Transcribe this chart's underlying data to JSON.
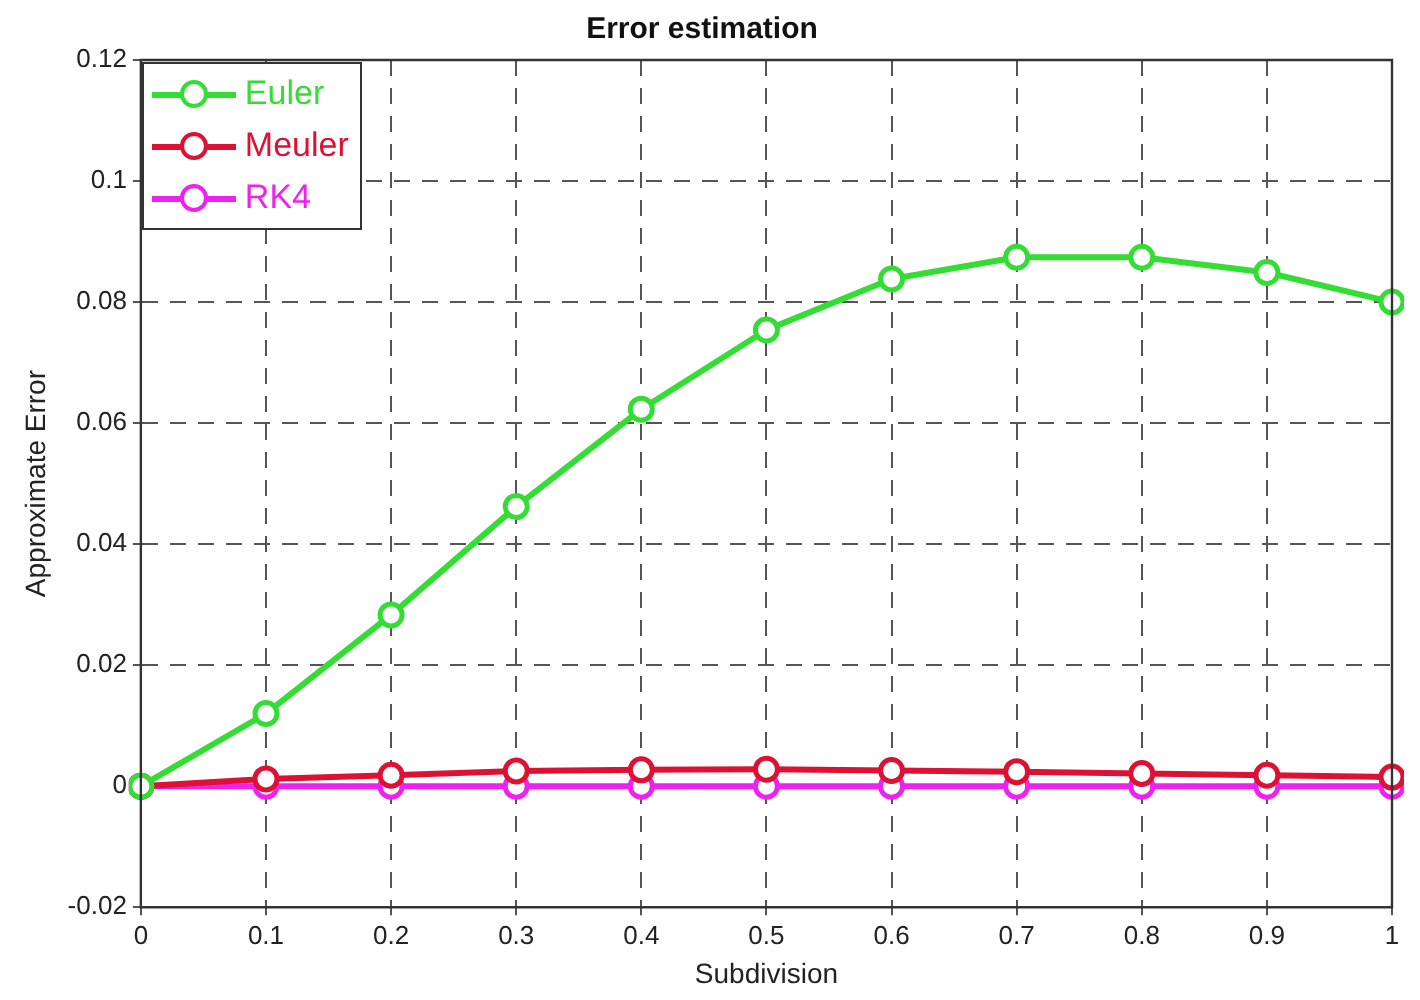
{
  "chart_data": {
    "type": "line",
    "title": "Error estimation",
    "xlabel": "Subdivision",
    "ylabel": "Approximate Error",
    "x": [
      0,
      0.1,
      0.2,
      0.3,
      0.4,
      0.5,
      0.6,
      0.7,
      0.8,
      0.9,
      1
    ],
    "series": [
      {
        "name": "Euler",
        "color": "#33dd33",
        "values": [
          0,
          0.012,
          0.0283,
          0.0462,
          0.0623,
          0.0754,
          0.0838,
          0.0874,
          0.0874,
          0.0849,
          0.08
        ]
      },
      {
        "name": "Meuler",
        "color": "#dd1133",
        "values": [
          0,
          0.0012,
          0.0018,
          0.0025,
          0.0027,
          0.0028,
          0.0026,
          0.0024,
          0.0021,
          0.0018,
          0.0015
        ]
      },
      {
        "name": "RK4",
        "color": "#ee22ee",
        "values": [
          0,
          0,
          0,
          0,
          0,
          0,
          0,
          0,
          0,
          0,
          0
        ]
      }
    ],
    "xlim": [
      0,
      1
    ],
    "xticks": [
      0,
      0.1,
      0.2,
      0.3,
      0.4,
      0.5,
      0.6,
      0.7,
      0.8,
      0.9,
      1
    ],
    "ylim": [
      -0.02,
      0.12
    ],
    "yticks": [
      -0.02,
      0,
      0.02,
      0.04,
      0.06,
      0.08,
      0.1,
      0.12
    ],
    "grid": true,
    "legend": "top left",
    "marker": "circle",
    "line_style": "solid"
  }
}
